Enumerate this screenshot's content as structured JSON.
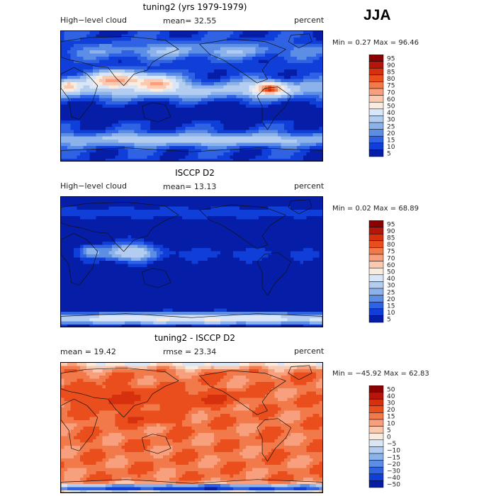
{
  "season": "JJA",
  "chart_data": [
    {
      "type": "heatmap",
      "title": "tuning2 (yrs 1979-1979)",
      "variable": "High−level cloud",
      "mean_text": "mean=  32.55",
      "units": "percent",
      "min_text": "Min =   0.27 Max =  96.46",
      "min": 0.27,
      "max": 96.46,
      "mean": 32.55,
      "colorbar_levels": [
        "95",
        "90",
        "85",
        "80",
        "75",
        "70",
        "60",
        "50",
        "40",
        "30",
        "25",
        "20",
        "15",
        "10",
        "5"
      ],
      "colorbar_colors": [
        "#8b0000",
        "#b5150a",
        "#d6300f",
        "#ea4e1c",
        "#f27a4a",
        "#f8a07e",
        "#fbc9b0",
        "#f9ecdf",
        "#d8e6f7",
        "#b3cdf0",
        "#8cb2eb",
        "#5c8ee6",
        "#2f63e3",
        "#103ed8",
        "#061da8"
      ],
      "field": "model"
    },
    {
      "type": "heatmap",
      "title": "ISCCP D2",
      "variable": "High−level cloud",
      "mean_text": "mean=  13.13",
      "units": "percent",
      "min_text": "Min =   0.02 Max =  68.89",
      "min": 0.02,
      "max": 68.89,
      "mean": 13.13,
      "colorbar_levels": [
        "95",
        "90",
        "85",
        "80",
        "75",
        "70",
        "60",
        "50",
        "40",
        "30",
        "25",
        "20",
        "15",
        "10",
        "5"
      ],
      "colorbar_colors": [
        "#8b0000",
        "#b5150a",
        "#d6300f",
        "#ea4e1c",
        "#f27a4a",
        "#f8a07e",
        "#fbc9b0",
        "#f9ecdf",
        "#d8e6f7",
        "#b3cdf0",
        "#8cb2eb",
        "#5c8ee6",
        "#2f63e3",
        "#103ed8",
        "#061da8"
      ],
      "field": "obs"
    },
    {
      "type": "heatmap",
      "title": "tuning2 - ISCCP D2",
      "variable": "",
      "mean_text": "mean =  19.42",
      "rmse_text": "rmse =  23.34",
      "units": "percent",
      "min_text": "Min = −45.92 Max =  62.83",
      "min": -45.92,
      "max": 62.83,
      "mean": 19.42,
      "rmse": 23.34,
      "colorbar_levels": [
        "50",
        "40",
        "30",
        "20",
        "15",
        "10",
        "5",
        "0",
        "−5",
        "−10",
        "−15",
        "−20",
        "−30",
        "−40",
        "−50"
      ],
      "colorbar_colors": [
        "#8b0000",
        "#b5150a",
        "#d6300f",
        "#ea4e1c",
        "#f27a4a",
        "#f8a07e",
        "#fbc9b0",
        "#f9ecdf",
        "#d8e6f7",
        "#b3cdf0",
        "#8cb2eb",
        "#5c8ee6",
        "#2f63e3",
        "#103ed8",
        "#061da8"
      ],
      "field": "diff"
    }
  ]
}
